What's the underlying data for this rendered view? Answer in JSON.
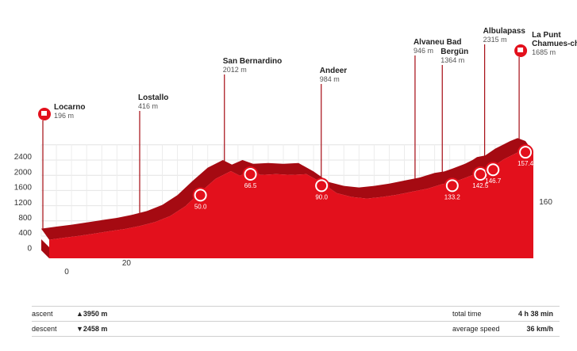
{
  "chart_data": {
    "type": "area",
    "title": "",
    "xlabel": "",
    "ylabel": "",
    "xlim": [
      0,
      160
    ],
    "ylim": [
      0,
      2400
    ],
    "x_ticks": [
      0,
      20,
      40,
      60,
      80,
      100,
      120,
      140,
      160
    ],
    "y_ticks": [
      0,
      400,
      800,
      1200,
      1600,
      2000,
      2400
    ],
    "grid": true,
    "profile": {
      "x": [
        0,
        5,
        10,
        15,
        20,
        25,
        30,
        35,
        40,
        45,
        50,
        55,
        60,
        63,
        66.5,
        70,
        75,
        80,
        85,
        90,
        95,
        100,
        105,
        110,
        115,
        120,
        125,
        130,
        133.2,
        136,
        140,
        142.5,
        144,
        146.7,
        150,
        155,
        157.4,
        160
      ],
      "y": [
        196,
        250,
        300,
        360,
        420,
        480,
        560,
        660,
        820,
        1080,
        1450,
        1800,
        2000,
        1880,
        2000,
        1900,
        1920,
        1900,
        1920,
        1700,
        1420,
        1320,
        1280,
        1320,
        1380,
        1460,
        1540,
        1660,
        1700,
        1780,
        1900,
        2000,
        2080,
        2120,
        2300,
        2500,
        2580,
        2500
      ]
    },
    "places": [
      {
        "name": "Locarno",
        "elevation": "196 m",
        "km": 0
      },
      {
        "name": "Lostallo",
        "elevation": "416 m",
        "km": 32
      },
      {
        "name": "San Bernardino",
        "elevation": "2012 m",
        "km": 60
      },
      {
        "name": "Andeer",
        "elevation": "984 m",
        "km": 92
      },
      {
        "name": "Alvaneu Bad",
        "elevation": "946 m",
        "km": 123
      },
      {
        "name": "Bergün",
        "elevation": "1364 m",
        "km": 132
      },
      {
        "name": "Albulapass",
        "elevation": "2315 m",
        "km": 146
      },
      {
        "name": "La Punt Chamues-ch",
        "elevation": "1685 m",
        "km": 157.4
      }
    ],
    "markers": [
      {
        "km": 50.0,
        "label": "50.0",
        "icon": "fist-icon"
      },
      {
        "km": 66.5,
        "label": "66.5",
        "icon": "mountain-icon"
      },
      {
        "km": 90.0,
        "label": "90.0",
        "icon": "feed-zone-icon"
      },
      {
        "km": 133.2,
        "label": "133.2",
        "icon": "bicycle-icon"
      },
      {
        "km": 142.5,
        "label": "142.5",
        "icon": "bicycle-icon"
      },
      {
        "km": 146.7,
        "label": "146.7",
        "icon": "fist-icon"
      },
      {
        "km": 157.4,
        "label": "157.4",
        "icon": "mountain-icon"
      }
    ],
    "colors": {
      "profile": "#e3101c",
      "side": "#a50a12",
      "marker_bg": "#e3101c"
    }
  },
  "footer": {
    "ascent_label": "ascent",
    "ascent_value": "▲3950 m",
    "descent_label": "descent",
    "descent_value": "▼2458 m",
    "time_label": "total time",
    "time_value": "4 h 38 min",
    "speed_label": "average speed",
    "speed_value": "36 km/h"
  }
}
